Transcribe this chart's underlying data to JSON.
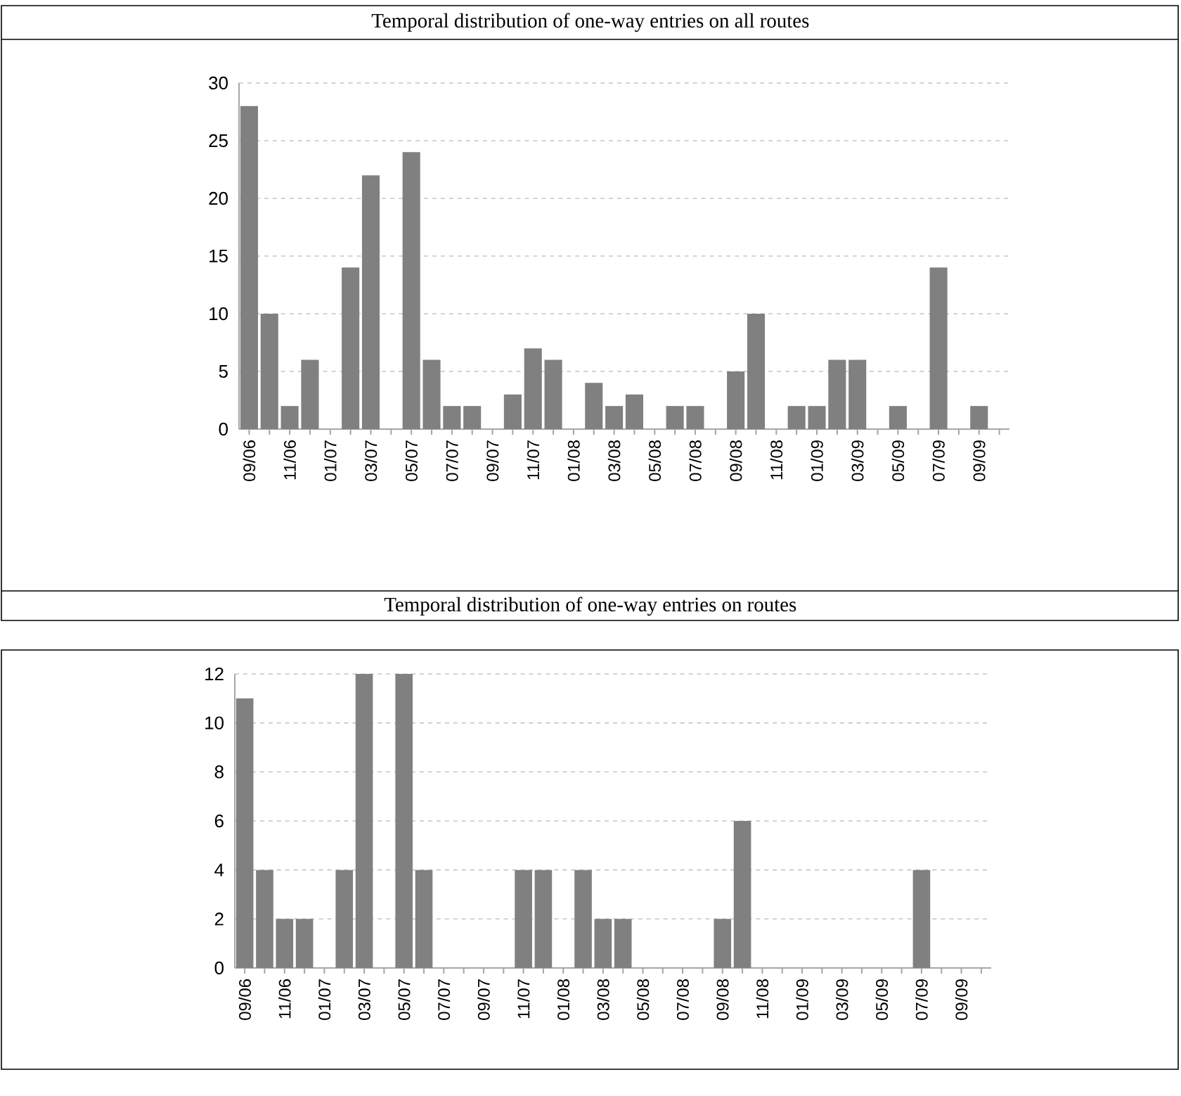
{
  "chart_data": [
    {
      "type": "bar",
      "title": "Temporal distribution of one-way entries on all routes",
      "categories": [
        "09/06",
        null,
        "11/06",
        null,
        "01/07",
        null,
        "03/07",
        null,
        "05/07",
        null,
        "07/07",
        null,
        "09/07",
        null,
        "11/07",
        null,
        "01/08",
        null,
        "03/08",
        null,
        "05/08",
        null,
        "07/08",
        null,
        "09/08",
        null,
        "11/08",
        null,
        "01/09",
        null,
        "03/09",
        null,
        "05/09",
        null,
        "07/09",
        null,
        "09/09",
        null
      ],
      "values": [
        28,
        10,
        2,
        6,
        0,
        14,
        22,
        0,
        24,
        6,
        2,
        2,
        0,
        3,
        7,
        6,
        0,
        4,
        2,
        3,
        0,
        2,
        2,
        0,
        5,
        10,
        0,
        2,
        2,
        6,
        6,
        0,
        2,
        0,
        14,
        0,
        2,
        0
      ],
      "color": "#808080",
      "ylim": [
        0,
        30
      ],
      "yticks": [
        0,
        5,
        10,
        15,
        20,
        25,
        30
      ],
      "grid": "y"
    },
    {
      "type": "bar",
      "title": "Temporal distribution of  one-way entries on routes",
      "categories": [
        "09/06",
        null,
        "11/06",
        null,
        "01/07",
        null,
        "03/07",
        null,
        "05/07",
        null,
        "07/07",
        null,
        "09/07",
        null,
        "11/07",
        null,
        "01/08",
        null,
        "03/08",
        null,
        "05/08",
        null,
        "07/08",
        null,
        "09/08",
        null,
        "11/08",
        null,
        "01/09",
        null,
        "03/09",
        null,
        "05/09",
        null,
        "07/09",
        null,
        "09/09",
        null
      ],
      "values": [
        11,
        4,
        2,
        2,
        0,
        4,
        12,
        0,
        12,
        4,
        0,
        0,
        0,
        0,
        4,
        4,
        0,
        4,
        2,
        2,
        0,
        0,
        0,
        0,
        2,
        6,
        0,
        0,
        0,
        0,
        0,
        0,
        0,
        0,
        4,
        0,
        0,
        0
      ],
      "color": "#808080",
      "ylim": [
        0,
        12
      ],
      "yticks": [
        0,
        2,
        4,
        6,
        8,
        10,
        12
      ],
      "grid": "y"
    }
  ]
}
